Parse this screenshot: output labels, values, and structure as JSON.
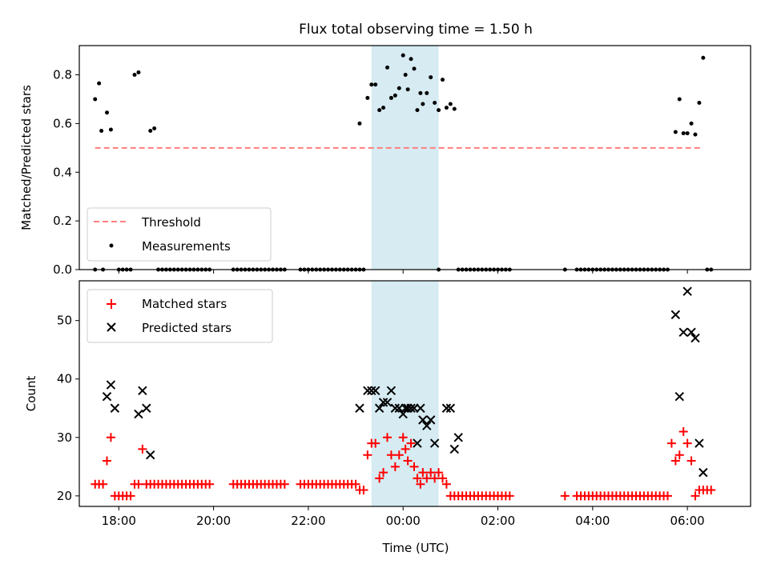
{
  "chart_data": [
    {
      "type": "scatter",
      "title": "Flux total observing time = 1.50 h",
      "xlabel": "",
      "ylabel": "Matched/Predicted stars",
      "xlim": [
        "17:10",
        "07:20"
      ],
      "ylim": [
        0,
        0.92
      ],
      "yticks": [
        0.0,
        0.2,
        0.4,
        0.6,
        0.8
      ],
      "ytick_labels": [
        "0.0",
        "0.2",
        "0.4",
        "0.6",
        "0.8"
      ],
      "highlight_span": [
        "23:20",
        "00:45"
      ],
      "highlight_color": "#add8e6",
      "series": [
        {
          "name": "Threshold",
          "style": "dashed-line",
          "color": "#ff7f7f",
          "x": [
            "17:30",
            "06:20"
          ],
          "y": [
            0.5,
            0.5
          ]
        },
        {
          "name": "Measurements",
          "style": "dot",
          "color": "#000000",
          "x": [
            "17:30",
            "17:35",
            "17:38",
            "17:45",
            "17:50",
            "18:20",
            "18:25",
            "18:40",
            "18:45",
            "23:05",
            "23:15",
            "23:20",
            "23:25",
            "23:30",
            "23:35",
            "23:40",
            "23:45",
            "23:50",
            "23:55",
            "00:00",
            "00:03",
            "00:06",
            "00:10",
            "00:14",
            "00:18",
            "00:22",
            "00:25",
            "00:30",
            "00:35",
            "00:40",
            "00:45",
            "00:50",
            "00:55",
            "01:00",
            "01:05",
            "05:45",
            "05:50",
            "05:55",
            "06:00",
            "06:05",
            "06:10",
            "06:15",
            "06:20"
          ],
          "y": [
            0.7,
            0.765,
            0.57,
            0.645,
            0.575,
            0.8,
            0.81,
            0.57,
            0.58,
            0.6,
            0.705,
            0.76,
            0.76,
            0.655,
            0.665,
            0.83,
            0.705,
            0.715,
            0.745,
            0.88,
            0.8,
            0.74,
            0.865,
            0.825,
            0.655,
            0.725,
            0.68,
            0.725,
            0.79,
            0.685,
            0.655,
            0.78,
            0.665,
            0.68,
            0.66,
            0.565,
            0.7,
            0.56,
            0.56,
            0.6,
            0.555,
            0.685,
            0.87
          ]
        }
      ],
      "zero_measurements_x": [
        "17:30",
        "17:40",
        "18:00",
        "18:05",
        "18:10",
        "18:15",
        "18:50",
        "18:55",
        "19:00",
        "19:05",
        "19:10",
        "19:15",
        "19:20",
        "19:25",
        "19:30",
        "19:35",
        "19:40",
        "19:45",
        "19:50",
        "19:55",
        "20:25",
        "20:30",
        "20:35",
        "20:40",
        "20:45",
        "20:50",
        "20:55",
        "21:00",
        "21:05",
        "21:10",
        "21:15",
        "21:20",
        "21:25",
        "21:30",
        "21:50",
        "21:55",
        "22:00",
        "22:05",
        "22:10",
        "22:15",
        "22:20",
        "22:25",
        "22:30",
        "22:35",
        "22:40",
        "22:45",
        "22:50",
        "22:55",
        "23:00",
        "23:05",
        "23:10",
        "00:45",
        "01:10",
        "01:15",
        "01:20",
        "01:25",
        "01:30",
        "01:35",
        "01:40",
        "01:45",
        "01:50",
        "01:55",
        "02:00",
        "02:05",
        "02:10",
        "02:15",
        "03:25",
        "03:40",
        "03:45",
        "03:50",
        "03:55",
        "04:00",
        "04:05",
        "04:10",
        "04:15",
        "04:20",
        "04:25",
        "04:30",
        "04:35",
        "04:40",
        "04:45",
        "04:50",
        "04:55",
        "05:00",
        "05:05",
        "05:10",
        "05:15",
        "05:20",
        "05:25",
        "05:30",
        "05:35",
        "06:25",
        "06:30"
      ],
      "legend": [
        "Threshold",
        "Measurements"
      ],
      "legend_position": "lower-left"
    },
    {
      "type": "scatter",
      "title": "",
      "xlabel": "Time (UTC)",
      "ylabel": "Count",
      "xlim": [
        "17:10",
        "07:20"
      ],
      "ylim": [
        18.2,
        56.8
      ],
      "xticks": [
        "18:00",
        "20:00",
        "22:00",
        "00:00",
        "02:00",
        "04:00",
        "06:00"
      ],
      "yticks": [
        20,
        30,
        40,
        50
      ],
      "ytick_labels": [
        "20",
        "30",
        "40",
        "50"
      ],
      "highlight_span": [
        "23:20",
        "00:45"
      ],
      "highlight_color": "#add8e6",
      "series": [
        {
          "name": "Matched stars",
          "style": "plus",
          "color": "#ff0000",
          "x": [
            "17:30",
            "17:35",
            "17:40",
            "17:45",
            "17:50",
            "17:55",
            "18:00",
            "18:05",
            "18:10",
            "18:15",
            "18:20",
            "18:25",
            "18:30",
            "18:35",
            "18:40",
            "18:45",
            "18:50",
            "18:55",
            "19:00",
            "19:05",
            "19:10",
            "19:15",
            "19:20",
            "19:25",
            "19:30",
            "19:35",
            "19:40",
            "19:45",
            "19:50",
            "19:55",
            "20:25",
            "20:30",
            "20:35",
            "20:40",
            "20:45",
            "20:50",
            "20:55",
            "21:00",
            "21:05",
            "21:10",
            "21:15",
            "21:20",
            "21:25",
            "21:30",
            "21:50",
            "21:55",
            "22:00",
            "22:05",
            "22:10",
            "22:15",
            "22:20",
            "22:25",
            "22:30",
            "22:35",
            "22:40",
            "22:45",
            "22:50",
            "22:55",
            "23:00",
            "23:05",
            "23:10",
            "23:15",
            "23:20",
            "23:25",
            "23:30",
            "23:35",
            "23:40",
            "23:45",
            "23:50",
            "23:55",
            "00:00",
            "00:03",
            "00:06",
            "00:10",
            "00:14",
            "00:18",
            "00:22",
            "00:25",
            "00:30",
            "00:35",
            "00:40",
            "00:45",
            "00:50",
            "00:55",
            "01:00",
            "01:05",
            "01:10",
            "01:15",
            "01:20",
            "01:25",
            "01:30",
            "01:35",
            "01:40",
            "01:45",
            "01:50",
            "01:55",
            "02:00",
            "02:05",
            "02:10",
            "02:15",
            "03:25",
            "03:40",
            "03:45",
            "03:50",
            "03:55",
            "04:00",
            "04:05",
            "04:10",
            "04:15",
            "04:20",
            "04:25",
            "04:30",
            "04:35",
            "04:40",
            "04:45",
            "04:50",
            "04:55",
            "05:00",
            "05:05",
            "05:10",
            "05:15",
            "05:20",
            "05:25",
            "05:30",
            "05:35",
            "05:40",
            "05:45",
            "05:50",
            "05:55",
            "06:00",
            "06:05",
            "06:10",
            "06:15",
            "06:20",
            "06:25",
            "06:30"
          ],
          "y": [
            22,
            22,
            22,
            26,
            30,
            20,
            20,
            20,
            20,
            20,
            22,
            22,
            28,
            22,
            22,
            22,
            22,
            22,
            22,
            22,
            22,
            22,
            22,
            22,
            22,
            22,
            22,
            22,
            22,
            22,
            22,
            22,
            22,
            22,
            22,
            22,
            22,
            22,
            22,
            22,
            22,
            22,
            22,
            22,
            22,
            22,
            22,
            22,
            22,
            22,
            22,
            22,
            22,
            22,
            22,
            22,
            22,
            22,
            22,
            21,
            21,
            27,
            29,
            29,
            23,
            24,
            30,
            27,
            25,
            27,
            30,
            28,
            26,
            29,
            25,
            23,
            22,
            24,
            23,
            24,
            23,
            24,
            23,
            22,
            20,
            20,
            20,
            20,
            20,
            20,
            20,
            20,
            20,
            20,
            20,
            20,
            20,
            20,
            20,
            20,
            20,
            20,
            20,
            20,
            20,
            20,
            20,
            20,
            20,
            20,
            20,
            20,
            20,
            20,
            20,
            20,
            20,
            20,
            20,
            20,
            20,
            20,
            20,
            20,
            20,
            29,
            26,
            27,
            31,
            29,
            26,
            20,
            21,
            21,
            21,
            21
          ]
        },
        {
          "name": "Predicted stars",
          "style": "x",
          "color": "#000000",
          "x": [
            "17:45",
            "17:50",
            "17:55",
            "18:25",
            "18:30",
            "18:35",
            "18:40",
            "23:05",
            "23:15",
            "23:20",
            "23:25",
            "23:30",
            "23:35",
            "23:40",
            "23:45",
            "23:50",
            "23:55",
            "00:00",
            "00:03",
            "00:06",
            "00:10",
            "00:14",
            "00:18",
            "00:22",
            "00:25",
            "00:30",
            "00:35",
            "00:40",
            "00:55",
            "01:00",
            "01:05",
            "01:10",
            "05:45",
            "05:50",
            "05:55",
            "06:00",
            "06:05",
            "06:10",
            "06:15",
            "06:20"
          ],
          "y": [
            37,
            39,
            35,
            34,
            38,
            35,
            27,
            35,
            38,
            38,
            38,
            35,
            36,
            36,
            38,
            35,
            35,
            34,
            35,
            35,
            35,
            35,
            29,
            35,
            33,
            32,
            33,
            29,
            35,
            35,
            28,
            30,
            51,
            37,
            48,
            55,
            48,
            47,
            29,
            24
          ]
        }
      ],
      "legend": [
        "Matched stars",
        "Predicted stars"
      ],
      "legend_position": "upper-left"
    }
  ]
}
